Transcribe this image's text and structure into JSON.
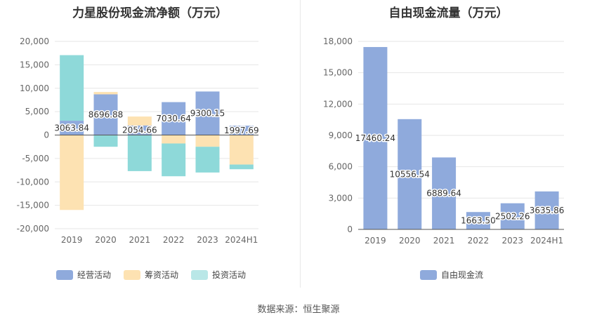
{
  "source_label": "数据来源：恒生聚源",
  "colors": {
    "operating": "#8faadc",
    "financing": "#fde2b2",
    "investing": "#8ed9d9",
    "fcf": "#8faadc"
  },
  "chart_data": [
    {
      "type": "bar",
      "stacked": true,
      "title": "力星股份现金流净额（万元）",
      "categories": [
        "2019",
        "2020",
        "2021",
        "2022",
        "2023",
        "2024H1"
      ],
      "series": [
        {
          "name": "经营活动",
          "values": [
            3063.84,
            8696.88,
            2054.66,
            7030.64,
            9300.15,
            1997.69
          ]
        },
        {
          "name": "筹资活动",
          "values": [
            -16000,
            500,
            1900,
            -1800,
            -2500,
            -6300
          ]
        },
        {
          "name": "投资活动",
          "values": [
            14000,
            -2500,
            -7700,
            -7000,
            -5500,
            -1000
          ]
        }
      ],
      "data_labels": [
        "3063.84",
        "8696.88",
        "2054.66",
        "7030.64",
        "9300.15",
        "1997.69"
      ],
      "ylim": [
        -20000,
        20000
      ],
      "yticks": [
        "20,000",
        "15,000",
        "10,000",
        "5,000",
        "0",
        "-5,000",
        "-10,000",
        "-15,000",
        "-20,000"
      ],
      "legend_position": "bottom"
    },
    {
      "type": "bar",
      "title": "自由现金流量（万元）",
      "categories": [
        "2019",
        "2020",
        "2021",
        "2022",
        "2023",
        "2024H1"
      ],
      "series": [
        {
          "name": "自由现金流",
          "values": [
            17460.24,
            10556.54,
            6889.64,
            1663.5,
            2502.26,
            3635.86
          ]
        }
      ],
      "data_labels": [
        "17460.24",
        "10556.54",
        "6889.64",
        "1663.50",
        "2502.26",
        "3635.86"
      ],
      "ylim": [
        0,
        18000
      ],
      "yticks": [
        "18,000",
        "15,000",
        "12,000",
        "9,000",
        "6,000",
        "3,000",
        "0"
      ],
      "legend_position": "bottom"
    }
  ]
}
